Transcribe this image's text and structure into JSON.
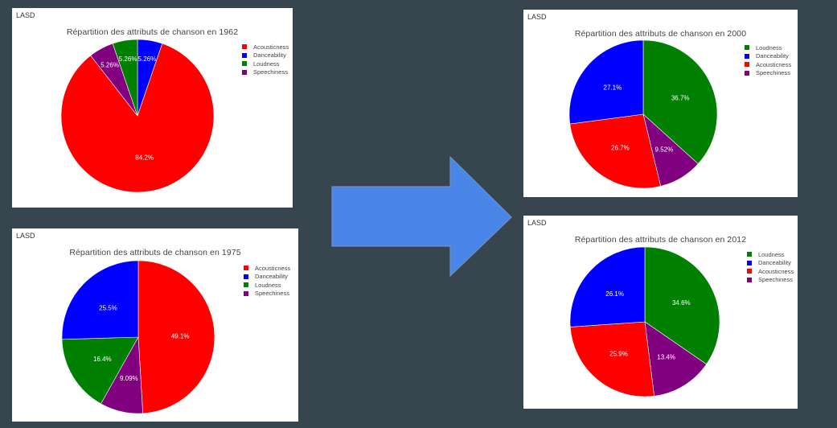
{
  "colors": {
    "background": "#37464e",
    "panel": "#ffffff",
    "arrow": "#4a86e8",
    "arrow_stroke": "#6f8fbd",
    "Acousticness": "#ff0000",
    "Danceability": "#0000ff",
    "Loudness": "#008000",
    "Speechiness": "#800080"
  },
  "arrow_icon": "right-arrow-icon",
  "chart_data": [
    {
      "id": "1962",
      "type": "pie",
      "app_label": "LASD",
      "title": "Répartition des attributs de chanson en  1962",
      "legend": [
        "Acousticness",
        "Danceability",
        "Loudness",
        "Speechiness"
      ],
      "legend_placement": "top-right",
      "direction": "clockwise",
      "slices": [
        {
          "label": "Acousticness",
          "value": 84.2,
          "text": "84.2%"
        },
        {
          "label": "Danceability",
          "value": 5.26,
          "text": "5.26%"
        },
        {
          "label": "Loudness",
          "value": 5.26,
          "text": "5.26%"
        },
        {
          "label": "Speechiness",
          "value": 5.26,
          "text": "5.26%"
        }
      ],
      "slice_order": [
        "Danceability",
        "Acousticness",
        "Speechiness",
        "Loudness"
      ]
    },
    {
      "id": "1975",
      "type": "pie",
      "app_label": "LASD",
      "title": "Répartition des attributs de chanson en  1975",
      "legend": [
        "Acousticness",
        "Danceability",
        "Loudness",
        "Speechiness"
      ],
      "legend_placement": "top-right",
      "direction": "clockwise",
      "slices": [
        {
          "label": "Acousticness",
          "value": 49.1,
          "text": "49.1%"
        },
        {
          "label": "Danceability",
          "value": 25.5,
          "text": "25.5%"
        },
        {
          "label": "Loudness",
          "value": 16.4,
          "text": "16.4%"
        },
        {
          "label": "Speechiness",
          "value": 9.09,
          "text": "9.09%"
        }
      ],
      "slice_order": [
        "Acousticness",
        "Speechiness",
        "Loudness",
        "Danceability"
      ]
    },
    {
      "id": "2000",
      "type": "pie",
      "app_label": "LASD",
      "title": "Répartition des attributs de chanson en  2000",
      "legend": [
        "Loudness",
        "Danceability",
        "Acousticness",
        "Speechiness"
      ],
      "legend_placement": "top-right",
      "direction": "clockwise",
      "slices": [
        {
          "label": "Loudness",
          "value": 36.7,
          "text": "36.7%"
        },
        {
          "label": "Danceability",
          "value": 27.1,
          "text": "27.1%"
        },
        {
          "label": "Acousticness",
          "value": 26.7,
          "text": "26.7%"
        },
        {
          "label": "Speechiness",
          "value": 9.52,
          "text": "9.52%"
        }
      ],
      "slice_order": [
        "Loudness",
        "Speechiness",
        "Acousticness",
        "Danceability"
      ]
    },
    {
      "id": "2012",
      "type": "pie",
      "app_label": "LASD",
      "title": "Répartition des attributs de chanson en  2012",
      "legend": [
        "Loudness",
        "Danceability",
        "Acousticness",
        "Speechiness"
      ],
      "legend_placement": "top-right",
      "direction": "clockwise",
      "slices": [
        {
          "label": "Loudness",
          "value": 34.6,
          "text": "34.6%"
        },
        {
          "label": "Danceability",
          "value": 26.1,
          "text": "26.1%"
        },
        {
          "label": "Acousticness",
          "value": 25.9,
          "text": "25.9%"
        },
        {
          "label": "Speechiness",
          "value": 13.4,
          "text": "13.4%"
        }
      ],
      "slice_order": [
        "Loudness",
        "Speechiness",
        "Acousticness",
        "Danceability"
      ]
    }
  ]
}
